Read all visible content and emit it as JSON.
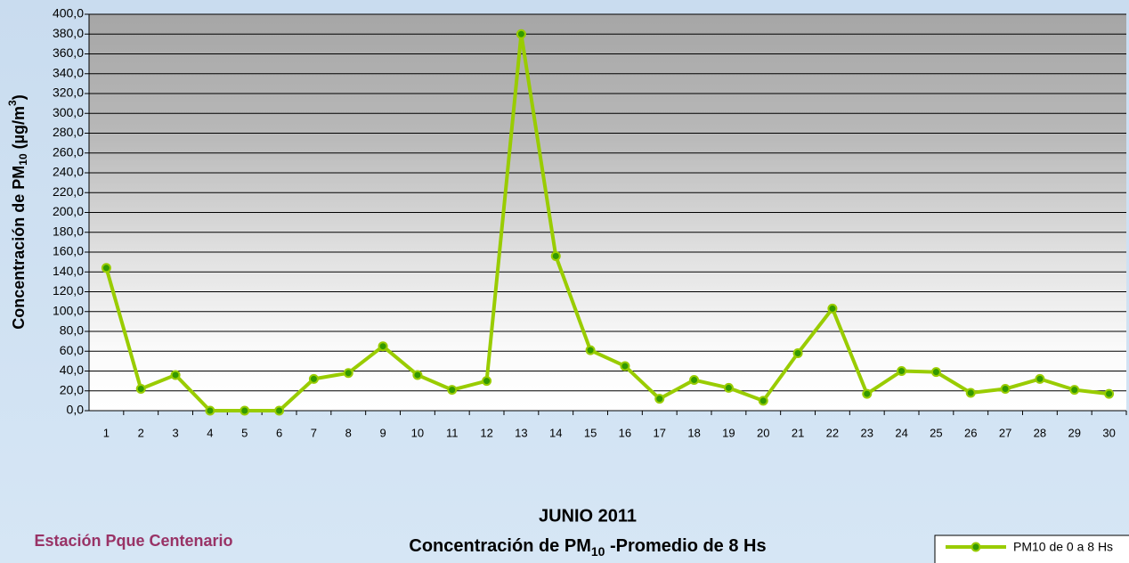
{
  "chart_data": {
    "type": "line",
    "title": "JUNIO 2011",
    "subtitle_parts": [
      "Concentración de PM",
      "10",
      " -Promedio de 8 Hs"
    ],
    "station": "Estación  Pque Centenario",
    "ylabel_parts": [
      "Concentración de PM",
      "10",
      " (µg/m",
      "3",
      ")"
    ],
    "categories": [
      "1",
      "2",
      "3",
      "4",
      "5",
      "6",
      "7",
      "8",
      "9",
      "10",
      "11",
      "12",
      "13",
      "14",
      "15",
      "16",
      "17",
      "18",
      "19",
      "20",
      "21",
      "22",
      "23",
      "24",
      "25",
      "26",
      "27",
      "28",
      "29",
      "30"
    ],
    "series": [
      {
        "name": "PM10 de 0 a 8 Hs",
        "color": "#99cc00",
        "marker_color": "#339900",
        "values": [
          144,
          22,
          36,
          0,
          0,
          0,
          32,
          38,
          65,
          36,
          21,
          30,
          380,
          156,
          61,
          45,
          12,
          31,
          23,
          10,
          58,
          103,
          17,
          40,
          39,
          18,
          22,
          32,
          21,
          17
        ]
      }
    ],
    "ylim": [
      0,
      400
    ],
    "yticks": [
      {
        "value": 0,
        "label": "0,0"
      },
      {
        "value": 20,
        "label": "20,0"
      },
      {
        "value": 40,
        "label": "40,0"
      },
      {
        "value": 60,
        "label": "60,0"
      },
      {
        "value": 80,
        "label": "80,0"
      },
      {
        "value": 100,
        "label": "100,0"
      },
      {
        "value": 120,
        "label": "120,0"
      },
      {
        "value": 140,
        "label": "140,0"
      },
      {
        "value": 160,
        "label": "160,0"
      },
      {
        "value": 180,
        "label": "180,0"
      },
      {
        "value": 200,
        "label": "200,0"
      },
      {
        "value": 220,
        "label": "220,0"
      },
      {
        "value": 240,
        "label": "240,0"
      },
      {
        "value": 260,
        "label": "260,0"
      },
      {
        "value": 280,
        "label": "280,0"
      },
      {
        "value": 300,
        "label": "300,0"
      },
      {
        "value": 320,
        "label": "320,0"
      },
      {
        "value": 340,
        "label": "340,0"
      },
      {
        "value": 360,
        "label": "360,0"
      },
      {
        "value": 380,
        "label": "380,0"
      },
      {
        "value": 400,
        "label": "400,0"
      }
    ],
    "grid": true
  }
}
